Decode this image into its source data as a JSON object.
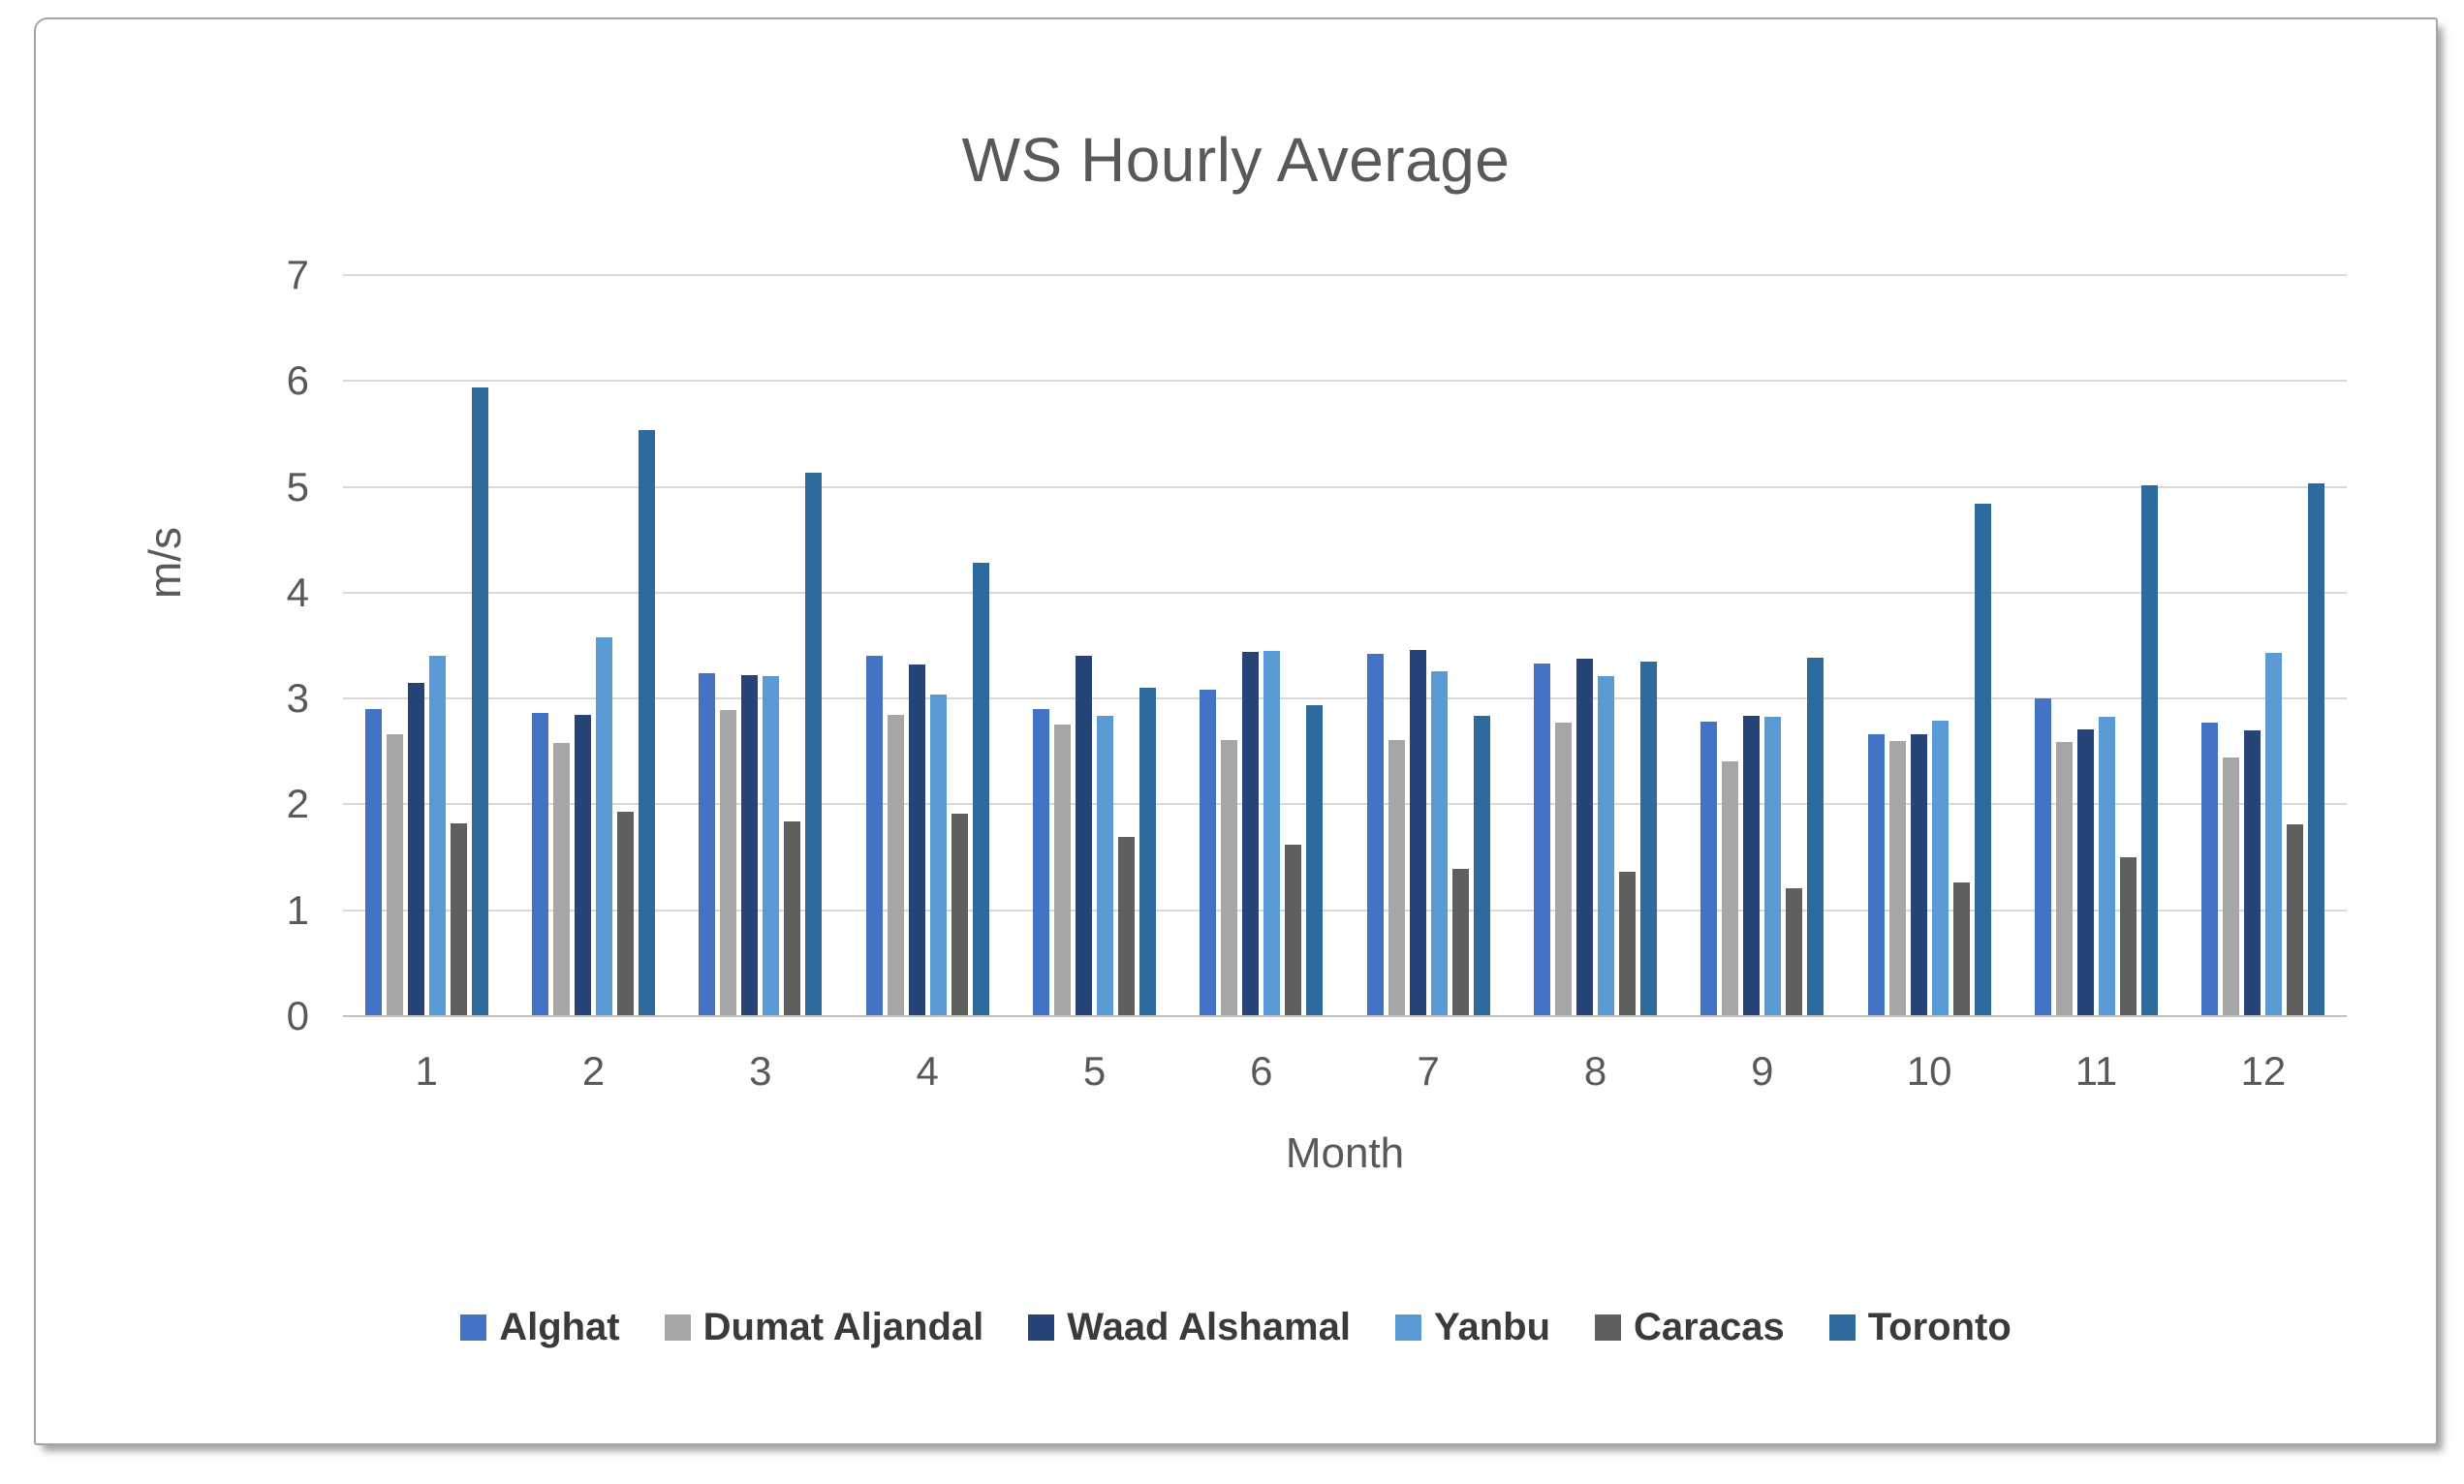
{
  "chart_data": {
    "type": "bar",
    "title": "WS Hourly Average",
    "xlabel": "Month",
    "ylabel": "m/s",
    "ylim": [
      0,
      7
    ],
    "ytick_interval": 1,
    "yticks": [
      0,
      1,
      2,
      3,
      4,
      5,
      6,
      7
    ],
    "grid": true,
    "gridline_color": "#d9d9d9",
    "axis_line_color": "#bfbfbf",
    "text_color": "#595959",
    "legend_position": "bottom",
    "categories": [
      "1",
      "2",
      "3",
      "4",
      "5",
      "6",
      "7",
      "8",
      "9",
      "10",
      "11",
      "12"
    ],
    "series": [
      {
        "name": "Alghat",
        "color": "#4472C4",
        "values": [
          2.9,
          2.86,
          3.24,
          3.4,
          2.9,
          3.08,
          3.42,
          3.33,
          2.78,
          2.66,
          3.0,
          2.77
        ]
      },
      {
        "name": "Dumat Aljandal",
        "color": "#A6A6A6",
        "values": [
          2.66,
          2.58,
          2.89,
          2.85,
          2.75,
          2.61,
          2.61,
          2.77,
          2.41,
          2.6,
          2.59,
          2.44
        ]
      },
      {
        "name": "Waad Alshamal",
        "color": "#264478",
        "values": [
          3.15,
          2.85,
          3.22,
          3.32,
          3.4,
          3.44,
          3.46,
          3.38,
          2.84,
          2.66,
          2.71,
          2.7
        ]
      },
      {
        "name": "Yanbu",
        "color": "#5B9BD5",
        "values": [
          3.4,
          3.58,
          3.21,
          3.04,
          2.84,
          3.45,
          3.26,
          3.21,
          2.83,
          2.79,
          2.83,
          3.43
        ]
      },
      {
        "name": "Caracas",
        "color": "#5F5F5F",
        "values": [
          1.82,
          1.93,
          1.84,
          1.91,
          1.69,
          1.62,
          1.39,
          1.36,
          1.21,
          1.26,
          1.5,
          1.81
        ]
      },
      {
        "name": "Toronto",
        "color": "#2D6A9D",
        "values": [
          5.94,
          5.54,
          5.13,
          4.28,
          3.1,
          2.94,
          2.84,
          3.35,
          3.39,
          4.84,
          5.01,
          5.03
        ]
      }
    ]
  }
}
